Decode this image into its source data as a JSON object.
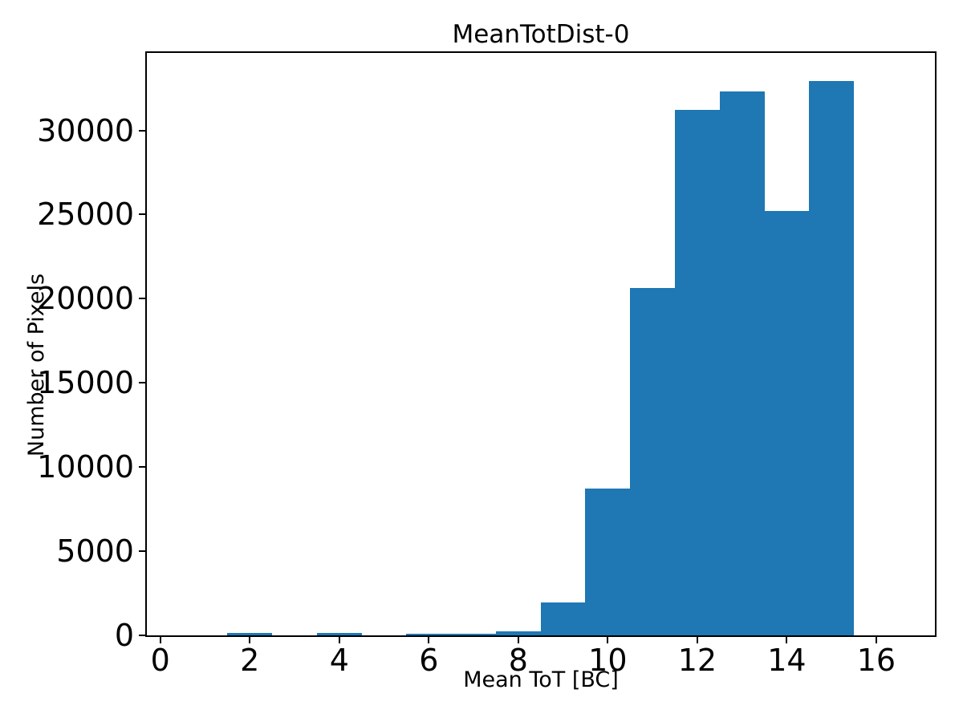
{
  "chart_data": {
    "type": "bar",
    "subtype": "histogram",
    "title": "MeanTotDist-0",
    "xlabel": "Mean ToT [BC]",
    "ylabel": "Number of Pixels",
    "bar_color": "#1f77b4",
    "background_color": "#ffffff",
    "axis_color": "#000000",
    "grid": false,
    "legend": null,
    "bin_edges": [
      0.5,
      1.5,
      2.5,
      3.5,
      4.5,
      5.5,
      6.5,
      7.5,
      8.5,
      9.5,
      10.5,
      11.5,
      12.5,
      13.5,
      14.5,
      15.5,
      16.5
    ],
    "counts": [
      0,
      140,
      0,
      140,
      0,
      110,
      110,
      240,
      1940,
      8720,
      20660,
      31210,
      32310,
      25210,
      32940,
      0
    ],
    "xlim": [
      -0.3,
      17.31
    ],
    "ylim": [
      0,
      34600
    ],
    "xticks": [
      0,
      2,
      4,
      6,
      8,
      10,
      12,
      14,
      16
    ],
    "yticks": [
      0,
      5000,
      10000,
      15000,
      20000,
      25000,
      30000
    ]
  }
}
